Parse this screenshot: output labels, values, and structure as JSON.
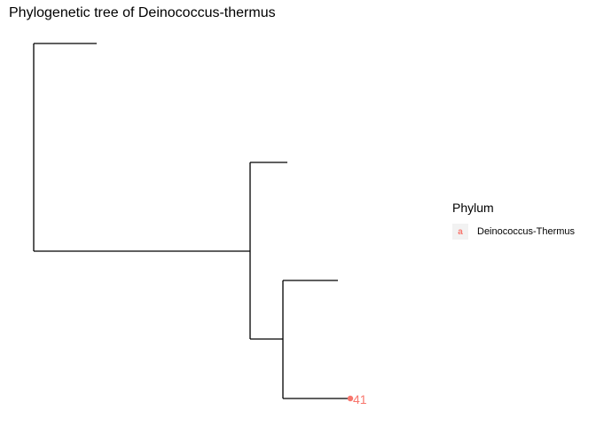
{
  "title": "Phylogenetic tree of Deinococcus-thermus",
  "colors": {
    "branch": "#000000",
    "deinococcus_thermus": "#F8766D"
  },
  "legend": {
    "title": "Phylum",
    "items": [
      {
        "label": "Deinococcus-Thermus",
        "glyph": "a",
        "color": "#F8766D"
      }
    ]
  },
  "tree": {
    "tips": [
      {
        "label": ""
      },
      {
        "label": ""
      },
      {
        "label": ""
      },
      {
        "label": "41",
        "phylum": "Deinococcus-Thermus",
        "has_point": true
      }
    ]
  }
}
